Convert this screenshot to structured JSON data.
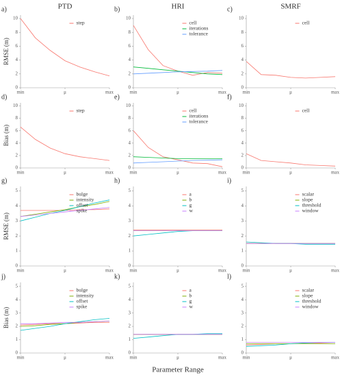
{
  "column_titles": [
    "PTD",
    "HRI",
    "SMRF"
  ],
  "xlabel": "Parameter Range",
  "chart_data": [
    {
      "type": "line",
      "label": "a)",
      "ylabel": "RMSE (m)",
      "x": [
        0,
        1,
        2,
        3,
        4,
        5,
        6
      ],
      "xlim": [
        0,
        6
      ],
      "xticks": [
        {
          "value": 0,
          "label": "min"
        },
        {
          "value": 3,
          "label": "μ"
        },
        {
          "value": 6,
          "label": "max"
        }
      ],
      "ylim": [
        0,
        10.5
      ],
      "yticks": [
        0,
        2,
        4,
        6,
        8,
        10
      ],
      "series": [
        {
          "name": "step",
          "color": "#f8766d",
          "values": [
            10,
            7.2,
            5.4,
            3.9,
            3.0,
            2.3,
            1.7
          ]
        }
      ]
    },
    {
      "type": "line",
      "label": "b)",
      "x": [
        0,
        1,
        2,
        3,
        4,
        5,
        6
      ],
      "xlim": [
        0,
        6
      ],
      "xticks": [
        {
          "value": 0,
          "label": "min"
        },
        {
          "value": 3,
          "label": "μ"
        },
        {
          "value": 6,
          "label": "max"
        }
      ],
      "ylim": [
        0,
        10.5
      ],
      "yticks": [
        0,
        2,
        4,
        6,
        8,
        10
      ],
      "series": [
        {
          "name": "cell",
          "color": "#f8766d",
          "values": [
            9.0,
            5.5,
            3.2,
            2.4,
            1.8,
            2.2,
            2.1
          ]
        },
        {
          "name": "iterations",
          "color": "#00ba38",
          "values": [
            3.0,
            2.8,
            2.6,
            2.4,
            2.2,
            2.0,
            1.9
          ]
        },
        {
          "name": "tolerance",
          "color": "#619cff",
          "values": [
            2.0,
            2.1,
            2.2,
            2.3,
            2.35,
            2.4,
            2.5
          ]
        }
      ]
    },
    {
      "type": "line",
      "label": "c)",
      "x": [
        0,
        1,
        2,
        3,
        4,
        5,
        6
      ],
      "xlim": [
        0,
        6
      ],
      "xticks": [
        {
          "value": 0,
          "label": "min"
        },
        {
          "value": 3,
          "label": "μ"
        },
        {
          "value": 6,
          "label": "max"
        }
      ],
      "ylim": [
        0,
        10.5
      ],
      "yticks": [
        0,
        2,
        4,
        6,
        8,
        10
      ],
      "series": [
        {
          "name": "cell",
          "color": "#f8766d",
          "values": [
            3.8,
            1.9,
            1.8,
            1.5,
            1.4,
            1.5,
            1.6
          ]
        }
      ]
    },
    {
      "type": "line",
      "label": "d)",
      "ylabel": "Bias (m)",
      "x": [
        0,
        1,
        2,
        3,
        4,
        5,
        6
      ],
      "xlim": [
        0,
        6
      ],
      "xticks": [
        {
          "value": 0,
          "label": "min"
        },
        {
          "value": 3,
          "label": "μ"
        },
        {
          "value": 6,
          "label": "max"
        }
      ],
      "ylim": [
        0,
        10.5
      ],
      "yticks": [
        0,
        2,
        4,
        6,
        8,
        10
      ],
      "series": [
        {
          "name": "step",
          "color": "#f8766d",
          "values": [
            6.6,
            4.6,
            3.2,
            2.3,
            1.8,
            1.5,
            1.2
          ]
        }
      ]
    },
    {
      "type": "line",
      "label": "e)",
      "x": [
        0,
        1,
        2,
        3,
        4,
        5,
        6
      ],
      "xlim": [
        0,
        6
      ],
      "xticks": [
        {
          "value": 0,
          "label": "min"
        },
        {
          "value": 3,
          "label": "μ"
        },
        {
          "value": 6,
          "label": "max"
        }
      ],
      "ylim": [
        0,
        10.5
      ],
      "yticks": [
        0,
        2,
        4,
        6,
        8,
        10
      ],
      "series": [
        {
          "name": "cell",
          "color": "#f8766d",
          "values": [
            6.0,
            3.3,
            1.8,
            1.3,
            0.8,
            0.7,
            0.2
          ]
        },
        {
          "name": "iterations",
          "color": "#00ba38",
          "values": [
            1.8,
            1.7,
            1.6,
            1.5,
            1.5,
            1.5,
            1.5
          ]
        },
        {
          "name": "tolerance",
          "color": "#619cff",
          "values": [
            0.8,
            0.9,
            1.0,
            1.1,
            1.2,
            1.25,
            1.3
          ]
        }
      ]
    },
    {
      "type": "line",
      "label": "f)",
      "x": [
        0,
        1,
        2,
        3,
        4,
        5,
        6
      ],
      "xlim": [
        0,
        6
      ],
      "xticks": [
        {
          "value": 0,
          "label": "min"
        },
        {
          "value": 3,
          "label": "μ"
        },
        {
          "value": 6,
          "label": "max"
        }
      ],
      "ylim": [
        0,
        10.5
      ],
      "yticks": [
        0,
        2,
        4,
        6,
        8,
        10
      ],
      "series": [
        {
          "name": "cell",
          "color": "#f8766d",
          "values": [
            2.3,
            1.2,
            1.0,
            0.8,
            0.5,
            0.4,
            0.3
          ]
        }
      ]
    },
    {
      "type": "line",
      "label": "g)",
      "ylabel": "RMSE (m)",
      "x": [
        0,
        1,
        2,
        3,
        4,
        5,
        6
      ],
      "xlim": [
        0,
        6
      ],
      "xticks": [
        {
          "value": 0,
          "label": "min"
        },
        {
          "value": 3,
          "label": "μ"
        },
        {
          "value": 6,
          "label": "max"
        }
      ],
      "ylim": [
        0,
        5.3
      ],
      "yticks": [
        0,
        1,
        2,
        3,
        4,
        5
      ],
      "series": [
        {
          "name": "bulge",
          "color": "#f8766d",
          "values": [
            3.7,
            3.7,
            3.7,
            3.7,
            3.75,
            3.75,
            3.8
          ]
        },
        {
          "name": "intensity",
          "color": "#7cae00",
          "values": [
            3.3,
            3.45,
            3.6,
            3.75,
            3.95,
            4.1,
            4.3
          ]
        },
        {
          "name": "offset",
          "color": "#00bfc4",
          "values": [
            3.0,
            3.25,
            3.5,
            3.7,
            3.95,
            4.2,
            4.4
          ]
        },
        {
          "name": "spike",
          "color": "#c77cff",
          "values": [
            3.3,
            3.4,
            3.5,
            3.6,
            3.7,
            3.8,
            3.9
          ]
        }
      ]
    },
    {
      "type": "line",
      "label": "h)",
      "x": [
        0,
        1,
        2,
        3,
        4,
        5,
        6
      ],
      "xlim": [
        0,
        6
      ],
      "xticks": [
        {
          "value": 0,
          "label": "min"
        },
        {
          "value": 3,
          "label": "μ"
        },
        {
          "value": 6,
          "label": "max"
        }
      ],
      "ylim": [
        0,
        5.3
      ],
      "yticks": [
        0,
        1,
        2,
        3,
        4,
        5
      ],
      "series": [
        {
          "name": "a",
          "color": "#f8766d",
          "values": [
            2.4,
            2.4,
            2.4,
            2.4,
            2.4,
            2.4,
            2.4
          ]
        },
        {
          "name": "b",
          "color": "#7cae00",
          "values": [
            2.35,
            2.35,
            2.35,
            2.35,
            2.35,
            2.35,
            2.35
          ]
        },
        {
          "name": "g",
          "color": "#00bfc4",
          "values": [
            2.0,
            2.1,
            2.2,
            2.3,
            2.35,
            2.35,
            2.35
          ]
        },
        {
          "name": "w",
          "color": "#c77cff",
          "values": [
            2.35,
            2.35,
            2.35,
            2.35,
            2.35,
            2.35,
            2.35
          ]
        }
      ]
    },
    {
      "type": "line",
      "label": "i)",
      "x": [
        0,
        1,
        2,
        3,
        4,
        5,
        6
      ],
      "xlim": [
        0,
        6
      ],
      "xticks": [
        {
          "value": 0,
          "label": "min"
        },
        {
          "value": 3,
          "label": "μ"
        },
        {
          "value": 6,
          "label": "max"
        }
      ],
      "ylim": [
        0,
        5.3
      ],
      "yticks": [
        0,
        1,
        2,
        3,
        4,
        5
      ],
      "series": [
        {
          "name": "scalar",
          "color": "#f8766d",
          "values": [
            1.5,
            1.5,
            1.5,
            1.5,
            1.5,
            1.5,
            1.5
          ]
        },
        {
          "name": "slope",
          "color": "#7cae00",
          "values": [
            1.5,
            1.5,
            1.5,
            1.5,
            1.5,
            1.5,
            1.5
          ]
        },
        {
          "name": "threshold",
          "color": "#00bfc4",
          "values": [
            1.6,
            1.55,
            1.5,
            1.5,
            1.45,
            1.45,
            1.45
          ]
        },
        {
          "name": "window",
          "color": "#c77cff",
          "values": [
            1.5,
            1.5,
            1.5,
            1.5,
            1.5,
            1.5,
            1.5
          ]
        }
      ]
    },
    {
      "type": "line",
      "label": "j)",
      "ylabel": "Bias (m)",
      "x": [
        0,
        1,
        2,
        3,
        4,
        5,
        6
      ],
      "xlim": [
        0,
        6
      ],
      "xticks": [
        {
          "value": 0,
          "label": "min"
        },
        {
          "value": 3,
          "label": "μ"
        },
        {
          "value": 6,
          "label": "max"
        }
      ],
      "ylim": [
        0,
        5.3
      ],
      "yticks": [
        0,
        1,
        2,
        3,
        4,
        5
      ],
      "series": [
        {
          "name": "bulge",
          "color": "#f8766d",
          "values": [
            2.1,
            2.15,
            2.2,
            2.2,
            2.25,
            2.3,
            2.3
          ]
        },
        {
          "name": "intensity",
          "color": "#7cae00",
          "values": [
            2.0,
            2.05,
            2.15,
            2.2,
            2.3,
            2.35,
            2.4
          ]
        },
        {
          "name": "offset",
          "color": "#00bfc4",
          "values": [
            1.7,
            1.85,
            2.0,
            2.2,
            2.35,
            2.5,
            2.6
          ]
        },
        {
          "name": "spike",
          "color": "#c77cff",
          "values": [
            2.2,
            2.2,
            2.25,
            2.3,
            2.3,
            2.35,
            2.4
          ]
        }
      ]
    },
    {
      "type": "line",
      "label": "k)",
      "x": [
        0,
        1,
        2,
        3,
        4,
        5,
        6
      ],
      "xlim": [
        0,
        6
      ],
      "xticks": [
        {
          "value": 0,
          "label": "min"
        },
        {
          "value": 3,
          "label": "μ"
        },
        {
          "value": 6,
          "label": "max"
        }
      ],
      "ylim": [
        0,
        5.3
      ],
      "yticks": [
        0,
        1,
        2,
        3,
        4,
        5
      ],
      "series": [
        {
          "name": "a",
          "color": "#f8766d",
          "values": [
            1.4,
            1.4,
            1.4,
            1.4,
            1.4,
            1.4,
            1.4
          ]
        },
        {
          "name": "b",
          "color": "#7cae00",
          "values": [
            1.4,
            1.4,
            1.4,
            1.4,
            1.4,
            1.4,
            1.4
          ]
        },
        {
          "name": "g",
          "color": "#00bfc4",
          "values": [
            1.1,
            1.2,
            1.3,
            1.4,
            1.4,
            1.45,
            1.45
          ]
        },
        {
          "name": "w",
          "color": "#c77cff",
          "values": [
            1.4,
            1.4,
            1.4,
            1.4,
            1.4,
            1.4,
            1.4
          ]
        }
      ]
    },
    {
      "type": "line",
      "label": "l)",
      "x": [
        0,
        1,
        2,
        3,
        4,
        5,
        6
      ],
      "xlim": [
        0,
        6
      ],
      "xticks": [
        {
          "value": 0,
          "label": "min"
        },
        {
          "value": 3,
          "label": "μ"
        },
        {
          "value": 6,
          "label": "max"
        }
      ],
      "ylim": [
        0,
        5.3
      ],
      "yticks": [
        0,
        1,
        2,
        3,
        4,
        5
      ],
      "series": [
        {
          "name": "scalar",
          "color": "#f8766d",
          "values": [
            0.6,
            0.65,
            0.7,
            0.7,
            0.75,
            0.75,
            0.8
          ]
        },
        {
          "name": "slope",
          "color": "#7cae00",
          "values": [
            0.7,
            0.7,
            0.7,
            0.7,
            0.7,
            0.7,
            0.7
          ]
        },
        {
          "name": "threshold",
          "color": "#00bfc4",
          "values": [
            0.5,
            0.55,
            0.6,
            0.7,
            0.75,
            0.8,
            0.8
          ]
        },
        {
          "name": "window",
          "color": "#c77cff",
          "values": [
            0.8,
            0.8,
            0.8,
            0.8,
            0.8,
            0.8,
            0.8
          ]
        }
      ]
    }
  ]
}
